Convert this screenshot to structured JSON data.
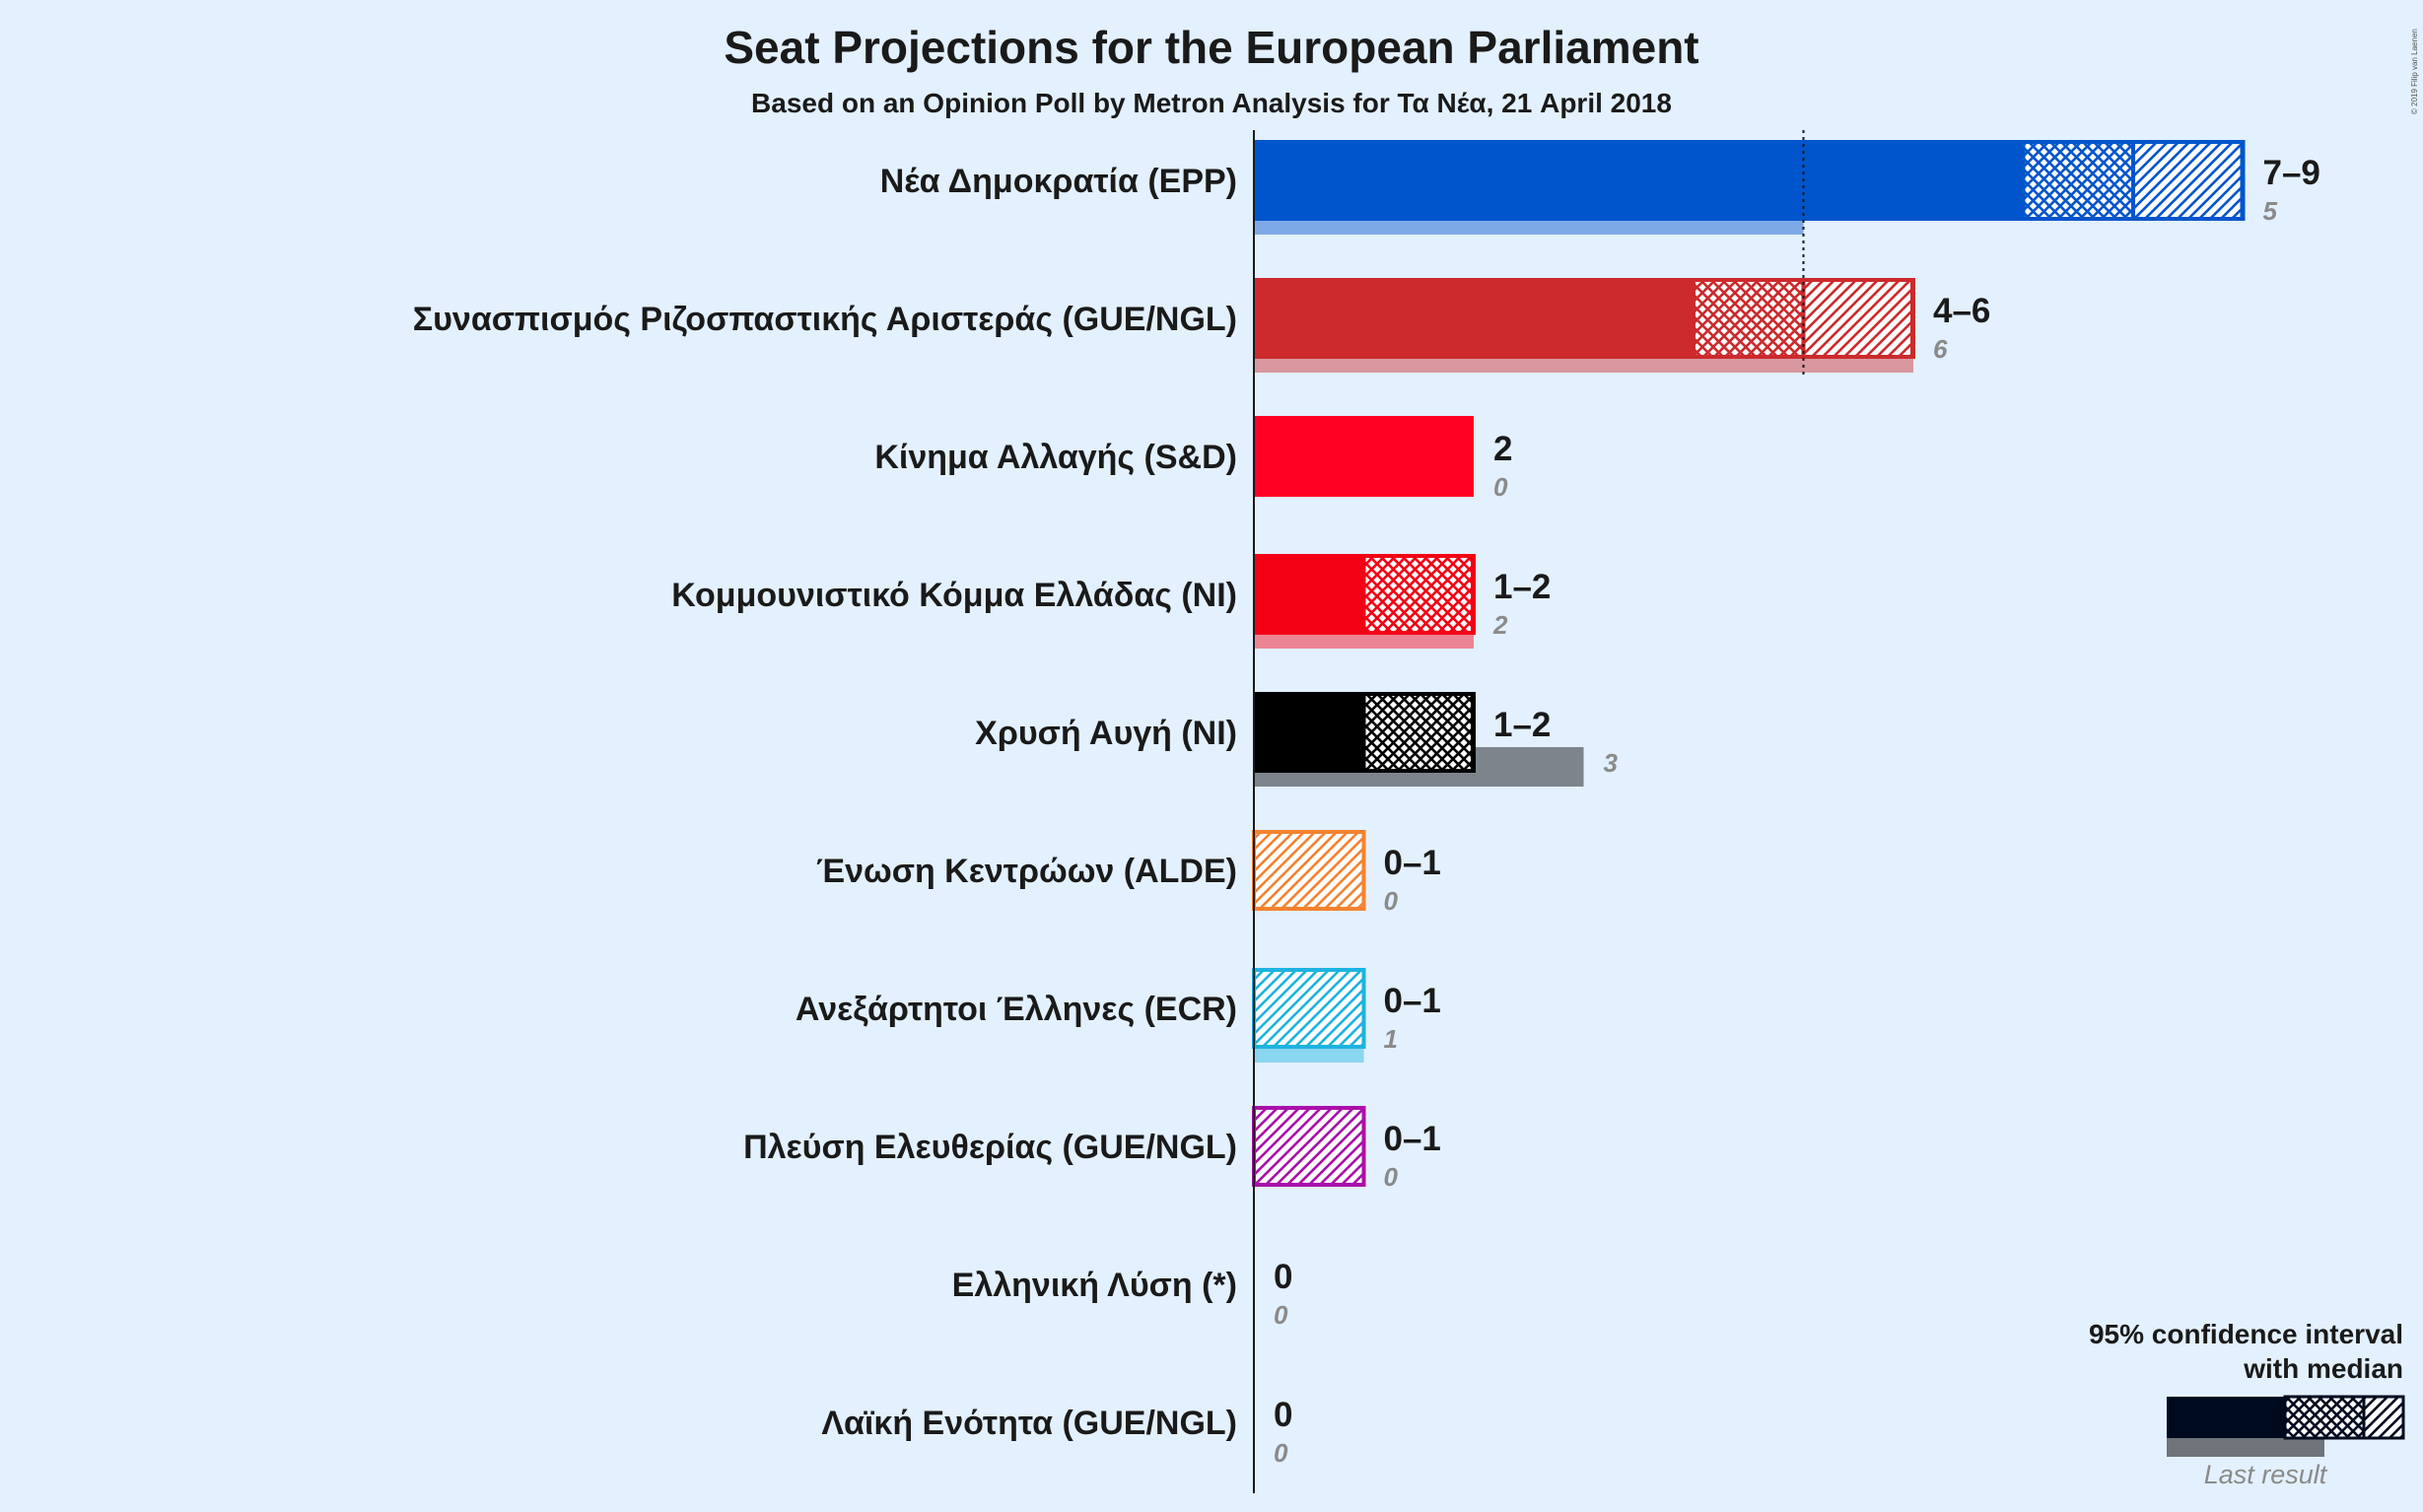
{
  "chart_data": {
    "type": "bar",
    "title": "Seat Projections for the European Parliament",
    "subtitle": "Based on an Opinion Poll by Metron Analysis for Τα Νέα, 21 April 2018",
    "majority_line": 5,
    "xlim": [
      0,
      9
    ],
    "parties": [
      {
        "name": "Νέα Δημοκρατία (EPP)",
        "low": 7,
        "median": 8,
        "high": 9,
        "range_label": "7–9",
        "last_result": 5,
        "last_label": "5",
        "color": "#0055cc"
      },
      {
        "name": "Συνασπισμός Ριζοσπαστικής Αριστεράς (GUE/NGL)",
        "low": 4,
        "median": 5,
        "high": 6,
        "range_label": "4–6",
        "last_result": 6,
        "last_label": "6",
        "color": "#cc2a2c"
      },
      {
        "name": "Κίνημα Αλλαγής (S&D)",
        "low": 2,
        "median": 2,
        "high": 2,
        "range_label": "2",
        "last_result": 0,
        "last_label": "0",
        "color": "#ff0022"
      },
      {
        "name": "Κομμουνιστικό Κόμμα Ελλάδας (NI)",
        "low": 1,
        "median": 2,
        "high": 2,
        "range_label": "1–2",
        "last_result": 2,
        "last_label": "2",
        "color": "#f30015"
      },
      {
        "name": "Χρυσή Αυγή (NI)",
        "low": 1,
        "median": 2,
        "high": 2,
        "range_label": "1–2",
        "last_result": 3,
        "last_label": "3",
        "color": "#000000"
      },
      {
        "name": "Ένωση Κεντρώων (ALDE)",
        "low": 0,
        "median": 0,
        "high": 1,
        "range_label": "0–1",
        "last_result": 0,
        "last_label": "0",
        "color": "#f48230"
      },
      {
        "name": "Ανεξάρτητοι Έλληνες (ECR)",
        "low": 0,
        "median": 0,
        "high": 1,
        "range_label": "0–1",
        "last_result": 1,
        "last_label": "1",
        "color": "#1db3e0"
      },
      {
        "name": "Πλεύση Ελευθερίας (GUE/NGL)",
        "low": 0,
        "median": 0,
        "high": 1,
        "range_label": "0–1",
        "last_result": 0,
        "last_label": "0",
        "color": "#aa10aa"
      },
      {
        "name": "Ελληνική Λύση (*)",
        "low": 0,
        "median": 0,
        "high": 0,
        "range_label": "0",
        "last_result": 0,
        "last_label": "0",
        "color": "#4470a0"
      },
      {
        "name": "Λαϊκή Ενότητα (GUE/NGL)",
        "low": 0,
        "median": 0,
        "high": 0,
        "range_label": "0",
        "last_result": 0,
        "last_label": "0",
        "color": "#c42a2a"
      }
    ],
    "legend": {
      "line1": "95% confidence interval",
      "line2": "with median",
      "last_result": "Last result"
    },
    "copyright": "© 2019 Filip van Laenen"
  }
}
